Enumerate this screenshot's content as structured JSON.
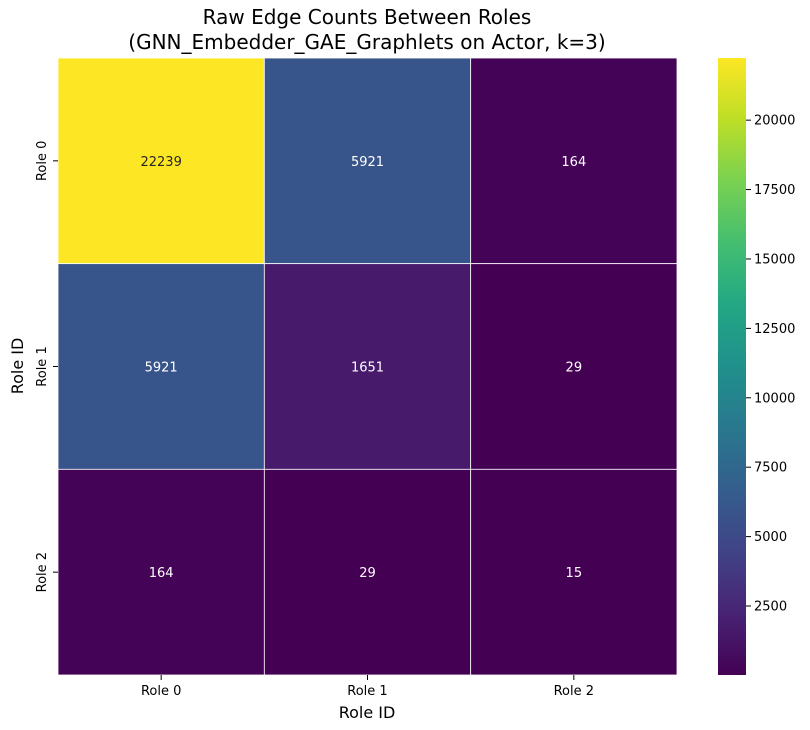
{
  "chart_data": {
    "type": "heatmap",
    "title": "Raw Edge Counts Between Roles",
    "subtitle": "(GNN_Embedder_GAE_Graphlets on Actor, k=3)",
    "xlabel": "Role ID",
    "ylabel": "Role ID",
    "x_categories": [
      "Role 0",
      "Role 1",
      "Role 2"
    ],
    "y_categories": [
      "Role 0",
      "Role 1",
      "Role 2"
    ],
    "values": [
      [
        22239,
        5921,
        164
      ],
      [
        5921,
        1651,
        29
      ],
      [
        164,
        29,
        15
      ]
    ],
    "colormap": "viridis",
    "color_range": [
      15,
      22239
    ],
    "colorbar_ticks": [
      2500,
      5000,
      7500,
      10000,
      12500,
      15000,
      17500,
      20000
    ],
    "cell_border_color": "#ffffff"
  }
}
